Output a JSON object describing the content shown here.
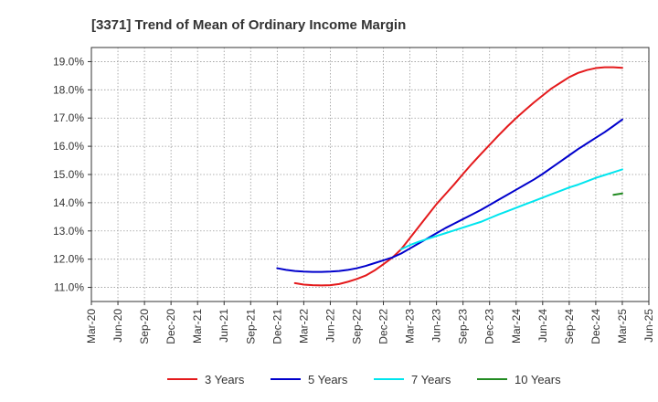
{
  "chart_data": {
    "type": "line",
    "title": "[3371]  Trend of Mean of Ordinary Income Margin",
    "xlabel": "",
    "ylabel": "",
    "x_ticks": [
      "Mar-20",
      "Jun-20",
      "Sep-20",
      "Dec-20",
      "Mar-21",
      "Jun-21",
      "Sep-21",
      "Dec-21",
      "Mar-22",
      "Jun-22",
      "Sep-22",
      "Dec-22",
      "Mar-23",
      "Jun-23",
      "Sep-23",
      "Dec-23",
      "Mar-24",
      "Jun-24",
      "Sep-24",
      "Dec-24",
      "Mar-25",
      "Jun-25"
    ],
    "y_ticks": [
      "11.0%",
      "12.0%",
      "13.0%",
      "14.0%",
      "15.0%",
      "16.0%",
      "17.0%",
      "18.0%",
      "19.0%"
    ],
    "ylim": [
      10.5,
      19.5
    ],
    "grid": true,
    "legend_position": "bottom",
    "series": [
      {
        "name": "3 Years",
        "color": "#e41a1c",
        "values": [
          11.15,
          11.1,
          11.08,
          11.07,
          11.08,
          11.12,
          11.2,
          11.3,
          11.42,
          11.6,
          11.82,
          12.05,
          12.35,
          12.75,
          13.15,
          13.55,
          13.95,
          14.3,
          14.65,
          15.02,
          15.38,
          15.72,
          16.05,
          16.38,
          16.7,
          17.0,
          17.28,
          17.55,
          17.8,
          18.05,
          18.25,
          18.45,
          18.6,
          18.7,
          18.77,
          18.8,
          18.8,
          18.78
        ]
      },
      {
        "name": "5 Years",
        "color": "#0000cc",
        "values": [
          11.68,
          11.62,
          11.58,
          11.56,
          11.55,
          11.55,
          11.56,
          11.58,
          11.62,
          11.68,
          11.76,
          11.86,
          11.96,
          12.06,
          12.2,
          12.38,
          12.56,
          12.74,
          12.92,
          13.1,
          13.26,
          13.42,
          13.58,
          13.74,
          13.92,
          14.1,
          14.28,
          14.46,
          14.64,
          14.82,
          15.02,
          15.24,
          15.46,
          15.68,
          15.9,
          16.1,
          16.3,
          16.5,
          16.72,
          16.95
        ]
      },
      {
        "name": "7 Years",
        "color": "#00e5ee",
        "values": [
          12.35,
          12.5,
          12.62,
          12.72,
          12.82,
          12.92,
          13.02,
          13.12,
          13.22,
          13.32,
          13.45,
          13.58,
          13.7,
          13.82,
          13.94,
          14.06,
          14.18,
          14.3,
          14.42,
          14.54,
          14.64,
          14.76,
          14.88,
          14.98,
          15.08,
          15.18
        ]
      },
      {
        "name": "10 Years",
        "color": "#228b22",
        "values": [
          14.28,
          14.33
        ]
      }
    ]
  }
}
